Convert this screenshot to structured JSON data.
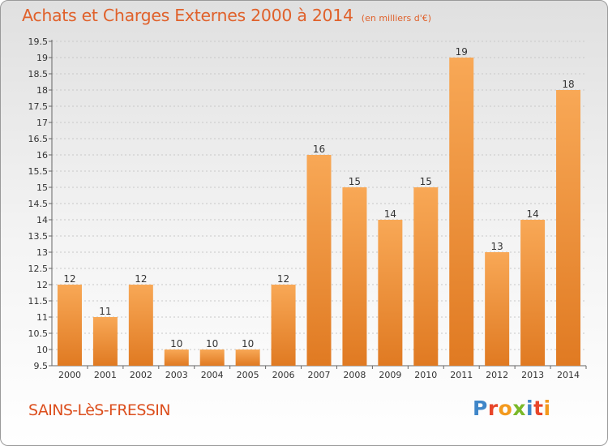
{
  "header": {
    "title": "Achats et Charges Externes 2000 à 2014",
    "unit": "(en milliers d'€)"
  },
  "footer": {
    "commune": "SAINS-LèS-FRESSIN",
    "logo_letters": [
      {
        "char": "P",
        "color": "#3f86c8"
      },
      {
        "char": "r",
        "color": "#e8462a"
      },
      {
        "char": "o",
        "color": "#f39a1e"
      },
      {
        "char": "x",
        "color": "#7ab929"
      },
      {
        "char": "i",
        "color": "#3f86c8"
      },
      {
        "char": "t",
        "color": "#e8462a"
      },
      {
        "char": "i",
        "color": "#f39a1e"
      }
    ]
  },
  "colors": {
    "bar_light": "#f8a856",
    "bar_dark": "#e07a22",
    "title": "#e0612b"
  },
  "chart_data": {
    "type": "bar",
    "title": "Achats et Charges Externes 2000 à 2014",
    "subtitle": "(en milliers d'€)",
    "categories": [
      "2000",
      "2001",
      "2002",
      "2003",
      "2004",
      "2005",
      "2006",
      "2007",
      "2008",
      "2009",
      "2010",
      "2011",
      "2012",
      "2013",
      "2014"
    ],
    "values": [
      12,
      11,
      12,
      10,
      10,
      10,
      12,
      16,
      15,
      14,
      15,
      19,
      13,
      14,
      18
    ],
    "ylim": [
      9.5,
      19.5
    ],
    "yticks": [
      "9.5",
      "10",
      "10.5",
      "11",
      "11.5",
      "12",
      "12.5",
      "13",
      "13.5",
      "14",
      "14.5",
      "15",
      "15.5",
      "16",
      "16.5",
      "17",
      "17.5",
      "18",
      "18.5",
      "19",
      "19.5"
    ],
    "grid": "horizontal dashed",
    "legend": "none"
  }
}
